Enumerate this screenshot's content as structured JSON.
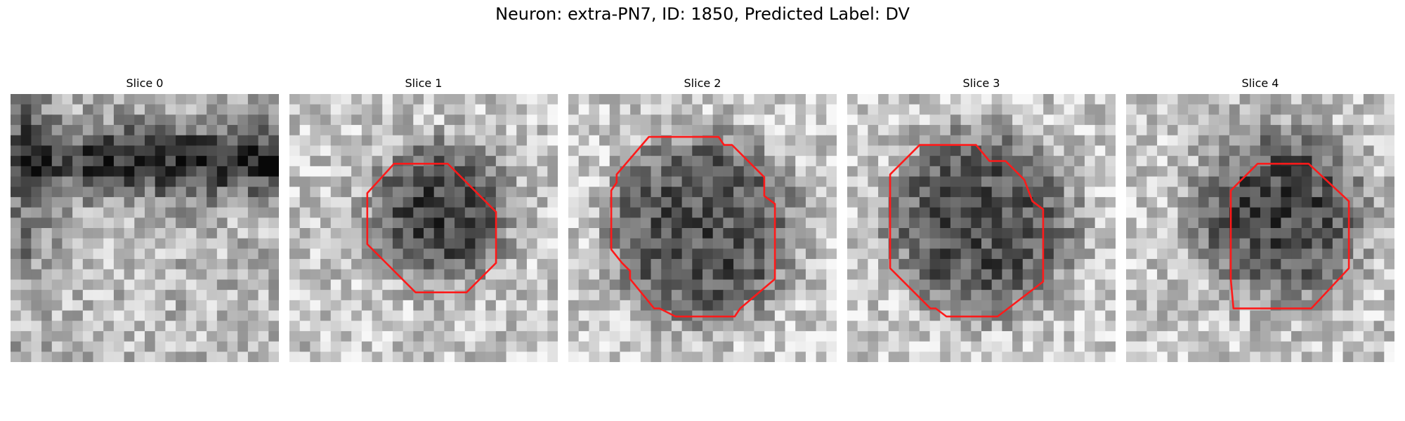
{
  "figure": {
    "title": "Neuron: extra-PN7, ID: 1850, Predicted Label: DV"
  },
  "panels": [
    {
      "title": "Slice 0",
      "has_contour": false,
      "texture": "dark-band-top",
      "seed": 11
    },
    {
      "title": "Slice 1",
      "has_contour": true,
      "texture": "blob",
      "seed": 23
    },
    {
      "title": "Slice 2",
      "has_contour": true,
      "texture": "blob-large",
      "seed": 37
    },
    {
      "title": "Slice 3",
      "has_contour": true,
      "texture": "blob-large",
      "seed": 41
    },
    {
      "title": "Slice 4",
      "has_contour": true,
      "texture": "blob",
      "seed": 53
    }
  ],
  "colors": {
    "contour": "#ff1a1a"
  }
}
